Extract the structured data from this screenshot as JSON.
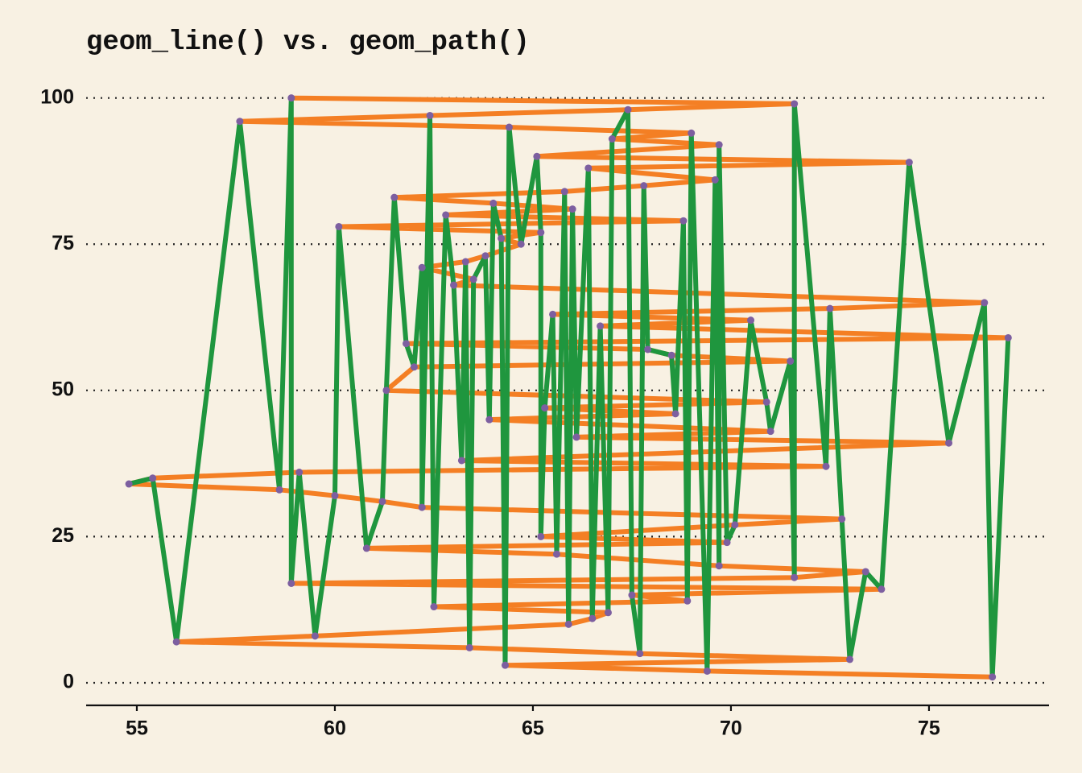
{
  "chart_data": {
    "type": "line",
    "title": "geom_line() vs. geom_path()",
    "xlim": [
      53.72,
      78.03
    ],
    "xticks": [
      55,
      60,
      65,
      70,
      75
    ],
    "ylim": [
      -3.86,
      104.5
    ],
    "yticks": [
      0,
      25,
      50,
      75,
      100
    ],
    "grid": true,
    "point_color": "#7d5fa0",
    "series": [
      {
        "color": "#f47f24",
        "x": [
          58.9,
          71.6,
          67.4,
          62.4,
          57.6,
          64.4,
          69.0,
          67.0,
          69.7,
          65.1,
          74.5,
          66.4,
          69.6,
          67.8,
          65.8,
          61.5,
          64.0,
          66.0,
          62.8,
          68.8,
          60.1,
          65.2,
          64.2,
          64.7,
          63.8,
          63.3,
          62.2,
          63.5,
          63.0,
          76.4,
          72.5,
          65.5,
          70.5,
          66.7,
          77.0,
          61.8,
          67.9,
          68.5,
          71.5,
          62.0,
          61.3,
          70.9,
          65.3,
          68.6,
          63.9,
          71.0,
          66.1,
          75.5,
          63.2,
          72.4,
          59.1,
          55.4,
          54.8,
          58.6,
          60.0,
          61.2,
          62.2,
          72.8,
          70.1,
          65.2,
          69.9,
          60.8,
          65.6,
          69.7,
          73.4,
          71.6,
          58.9,
          73.8,
          67.5,
          68.9,
          62.5,
          66.9,
          66.5,
          65.9,
          59.5,
          56.0,
          63.4,
          67.7,
          73.0,
          64.3,
          69.4,
          76.6
        ],
        "values": [
          100,
          99,
          98,
          97,
          96,
          95,
          94,
          93,
          92,
          90,
          89,
          88,
          86,
          85,
          84,
          83,
          82,
          81,
          80,
          79,
          78,
          77,
          76,
          75,
          73,
          72,
          71,
          69,
          68,
          65,
          64,
          63,
          62,
          61,
          59,
          58,
          57,
          56,
          55,
          54,
          50,
          48,
          47,
          46,
          45,
          43,
          42,
          41,
          38,
          37,
          36,
          35,
          34,
          33,
          32,
          31,
          30,
          28,
          27,
          25,
          24,
          23,
          22,
          20,
          19,
          18,
          17,
          16,
          15,
          14,
          13,
          12,
          11,
          10,
          8,
          7,
          6,
          5,
          4,
          3,
          2,
          1
        ]
      },
      {
        "color": "#1f963e",
        "x": [
          54.8,
          55.4,
          56.0,
          57.6,
          58.6,
          58.9,
          58.9,
          59.1,
          59.5,
          60.0,
          60.1,
          60.8,
          61.2,
          61.3,
          61.5,
          61.8,
          62.0,
          62.2,
          62.2,
          62.4,
          62.5,
          62.8,
          63.0,
          63.2,
          63.3,
          63.4,
          63.5,
          63.8,
          63.9,
          64.0,
          64.2,
          64.3,
          64.4,
          64.7,
          65.1,
          65.2,
          65.2,
          65.3,
          65.5,
          65.6,
          65.8,
          65.9,
          66.0,
          66.1,
          66.4,
          66.5,
          66.7,
          66.9,
          67.0,
          67.4,
          67.5,
          67.7,
          67.8,
          67.9,
          68.5,
          68.6,
          68.8,
          68.9,
          69.0,
          69.4,
          69.6,
          69.7,
          69.7,
          69.9,
          70.1,
          70.5,
          70.9,
          71.0,
          71.5,
          71.6,
          71.6,
          72.4,
          72.5,
          72.8,
          73.0,
          73.4,
          73.8,
          74.5,
          75.5,
          76.4,
          76.6,
          77.0
        ],
        "values": [
          34,
          35,
          7,
          96,
          33,
          100,
          17,
          36,
          8,
          32,
          78,
          23,
          31,
          50,
          83,
          58,
          54,
          71,
          30,
          97,
          13,
          80,
          68,
          38,
          72,
          6,
          69,
          73,
          45,
          82,
          76,
          3,
          95,
          75,
          90,
          77,
          25,
          47,
          63,
          22,
          84,
          10,
          81,
          42,
          88,
          11,
          61,
          12,
          93,
          98,
          15,
          5,
          85,
          57,
          56,
          46,
          79,
          14,
          94,
          2,
          86,
          20,
          92,
          24,
          27,
          62,
          48,
          43,
          55,
          18,
          99,
          37,
          64,
          28,
          4,
          19,
          16,
          89,
          41,
          65,
          1,
          59
        ]
      }
    ]
  }
}
